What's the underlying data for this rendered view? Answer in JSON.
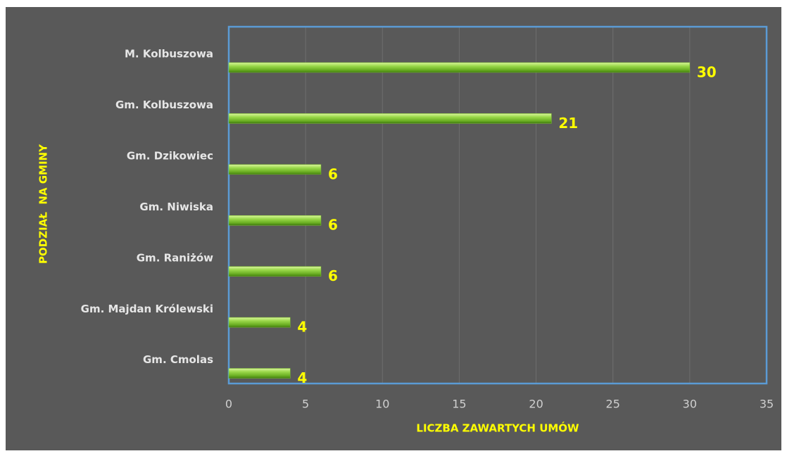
{
  "chart_data": {
    "type": "barh",
    "ylabel": "PODZIAŁ  NA GMINY",
    "xlabel": "LICZBA ZAWARTYCH UMÓW",
    "categories": [
      "M. Kolbuszowa",
      "Gm. Kolbuszowa",
      "Gm. Dzikowiec",
      "Gm. Niwiska",
      "Gm. Raniżów",
      "Gm. Majdan Królewski",
      "Gm. Cmolas"
    ],
    "values": [
      30,
      21,
      6,
      6,
      6,
      4,
      4
    ],
    "color": "#7cc42a",
    "xlim": [
      0,
      35
    ],
    "xticks": [
      0,
      5,
      10,
      15,
      20,
      25,
      30,
      35
    ],
    "grid": true
  }
}
